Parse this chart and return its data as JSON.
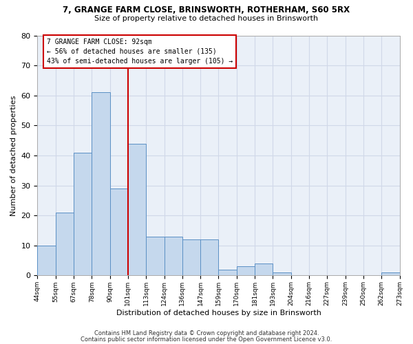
{
  "title1": "7, GRANGE FARM CLOSE, BRINSWORTH, ROTHERHAM, S60 5RX",
  "title2": "Size of property relative to detached houses in Brinsworth",
  "xlabel": "Distribution of detached houses by size in Brinsworth",
  "ylabel": "Number of detached properties",
  "bar_values": [
    10,
    21,
    41,
    61,
    29,
    44,
    13,
    13,
    12,
    12,
    2,
    3,
    4,
    1,
    0,
    0,
    0,
    0,
    0,
    1
  ],
  "bin_labels": [
    "44sqm",
    "55sqm",
    "67sqm",
    "78sqm",
    "90sqm",
    "101sqm",
    "113sqm",
    "124sqm",
    "136sqm",
    "147sqm",
    "159sqm",
    "170sqm",
    "181sqm",
    "193sqm",
    "204sqm",
    "216sqm",
    "227sqm",
    "239sqm",
    "250sqm",
    "262sqm",
    "273sqm"
  ],
  "bar_color": "#c5d8ed",
  "bar_edge_color": "#5a8fc4",
  "vline_x": 4,
  "annotation_line1": "7 GRANGE FARM CLOSE: 92sqm",
  "annotation_line2": "← 56% of detached houses are smaller (135)",
  "annotation_line3": "43% of semi-detached houses are larger (105) →",
  "annotation_box_color": "#ffffff",
  "annotation_box_edge_color": "#cc0000",
  "vline_color": "#cc0000",
  "footer1": "Contains HM Land Registry data © Crown copyright and database right 2024.",
  "footer2": "Contains public sector information licensed under the Open Government Licence v3.0.",
  "ylim": [
    0,
    80
  ],
  "yticks": [
    0,
    10,
    20,
    30,
    40,
    50,
    60,
    70,
    80
  ],
  "grid_color": "#d0d8e8",
  "bg_color": "#eaf0f8"
}
